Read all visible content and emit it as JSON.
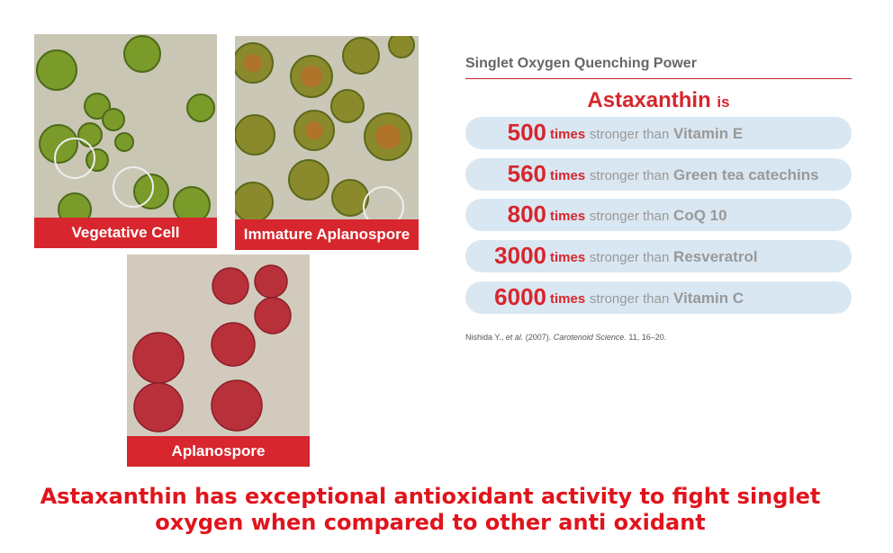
{
  "images": [
    {
      "label": "Vegetative Cell"
    },
    {
      "label": "Immature Aplanospore"
    },
    {
      "label": "Aplanospore"
    }
  ],
  "panel": {
    "title": "Singlet Oxygen Quenching Power",
    "headline": "Astaxanthin",
    "headline_suffix": "is",
    "rows": [
      {
        "number": 500,
        "unit": "times",
        "phrase": "stronger than",
        "target": "Vitamin E"
      },
      {
        "number": 560,
        "unit": "times",
        "phrase": "stronger than",
        "target": "Green tea catechins"
      },
      {
        "number": 800,
        "unit": "times",
        "phrase": "stronger than",
        "target": "CoQ 10"
      },
      {
        "number": 3000,
        "unit": "times",
        "phrase": "stronger than",
        "target": "Resveratrol"
      },
      {
        "number": 6000,
        "unit": "times",
        "phrase": "stronger than",
        "target": "Vitamin C"
      }
    ]
  },
  "citation": {
    "author": "Nishida Y.,",
    "etal": "et al.",
    "year": "(2007).",
    "journal": "Carotenoid Science.",
    "pages": "11, 16–20."
  },
  "caption": [
    "Astaxanthin has exceptional antioxidant activity to fight singlet",
    "oxygen when compared to other anti oxidant"
  ]
}
